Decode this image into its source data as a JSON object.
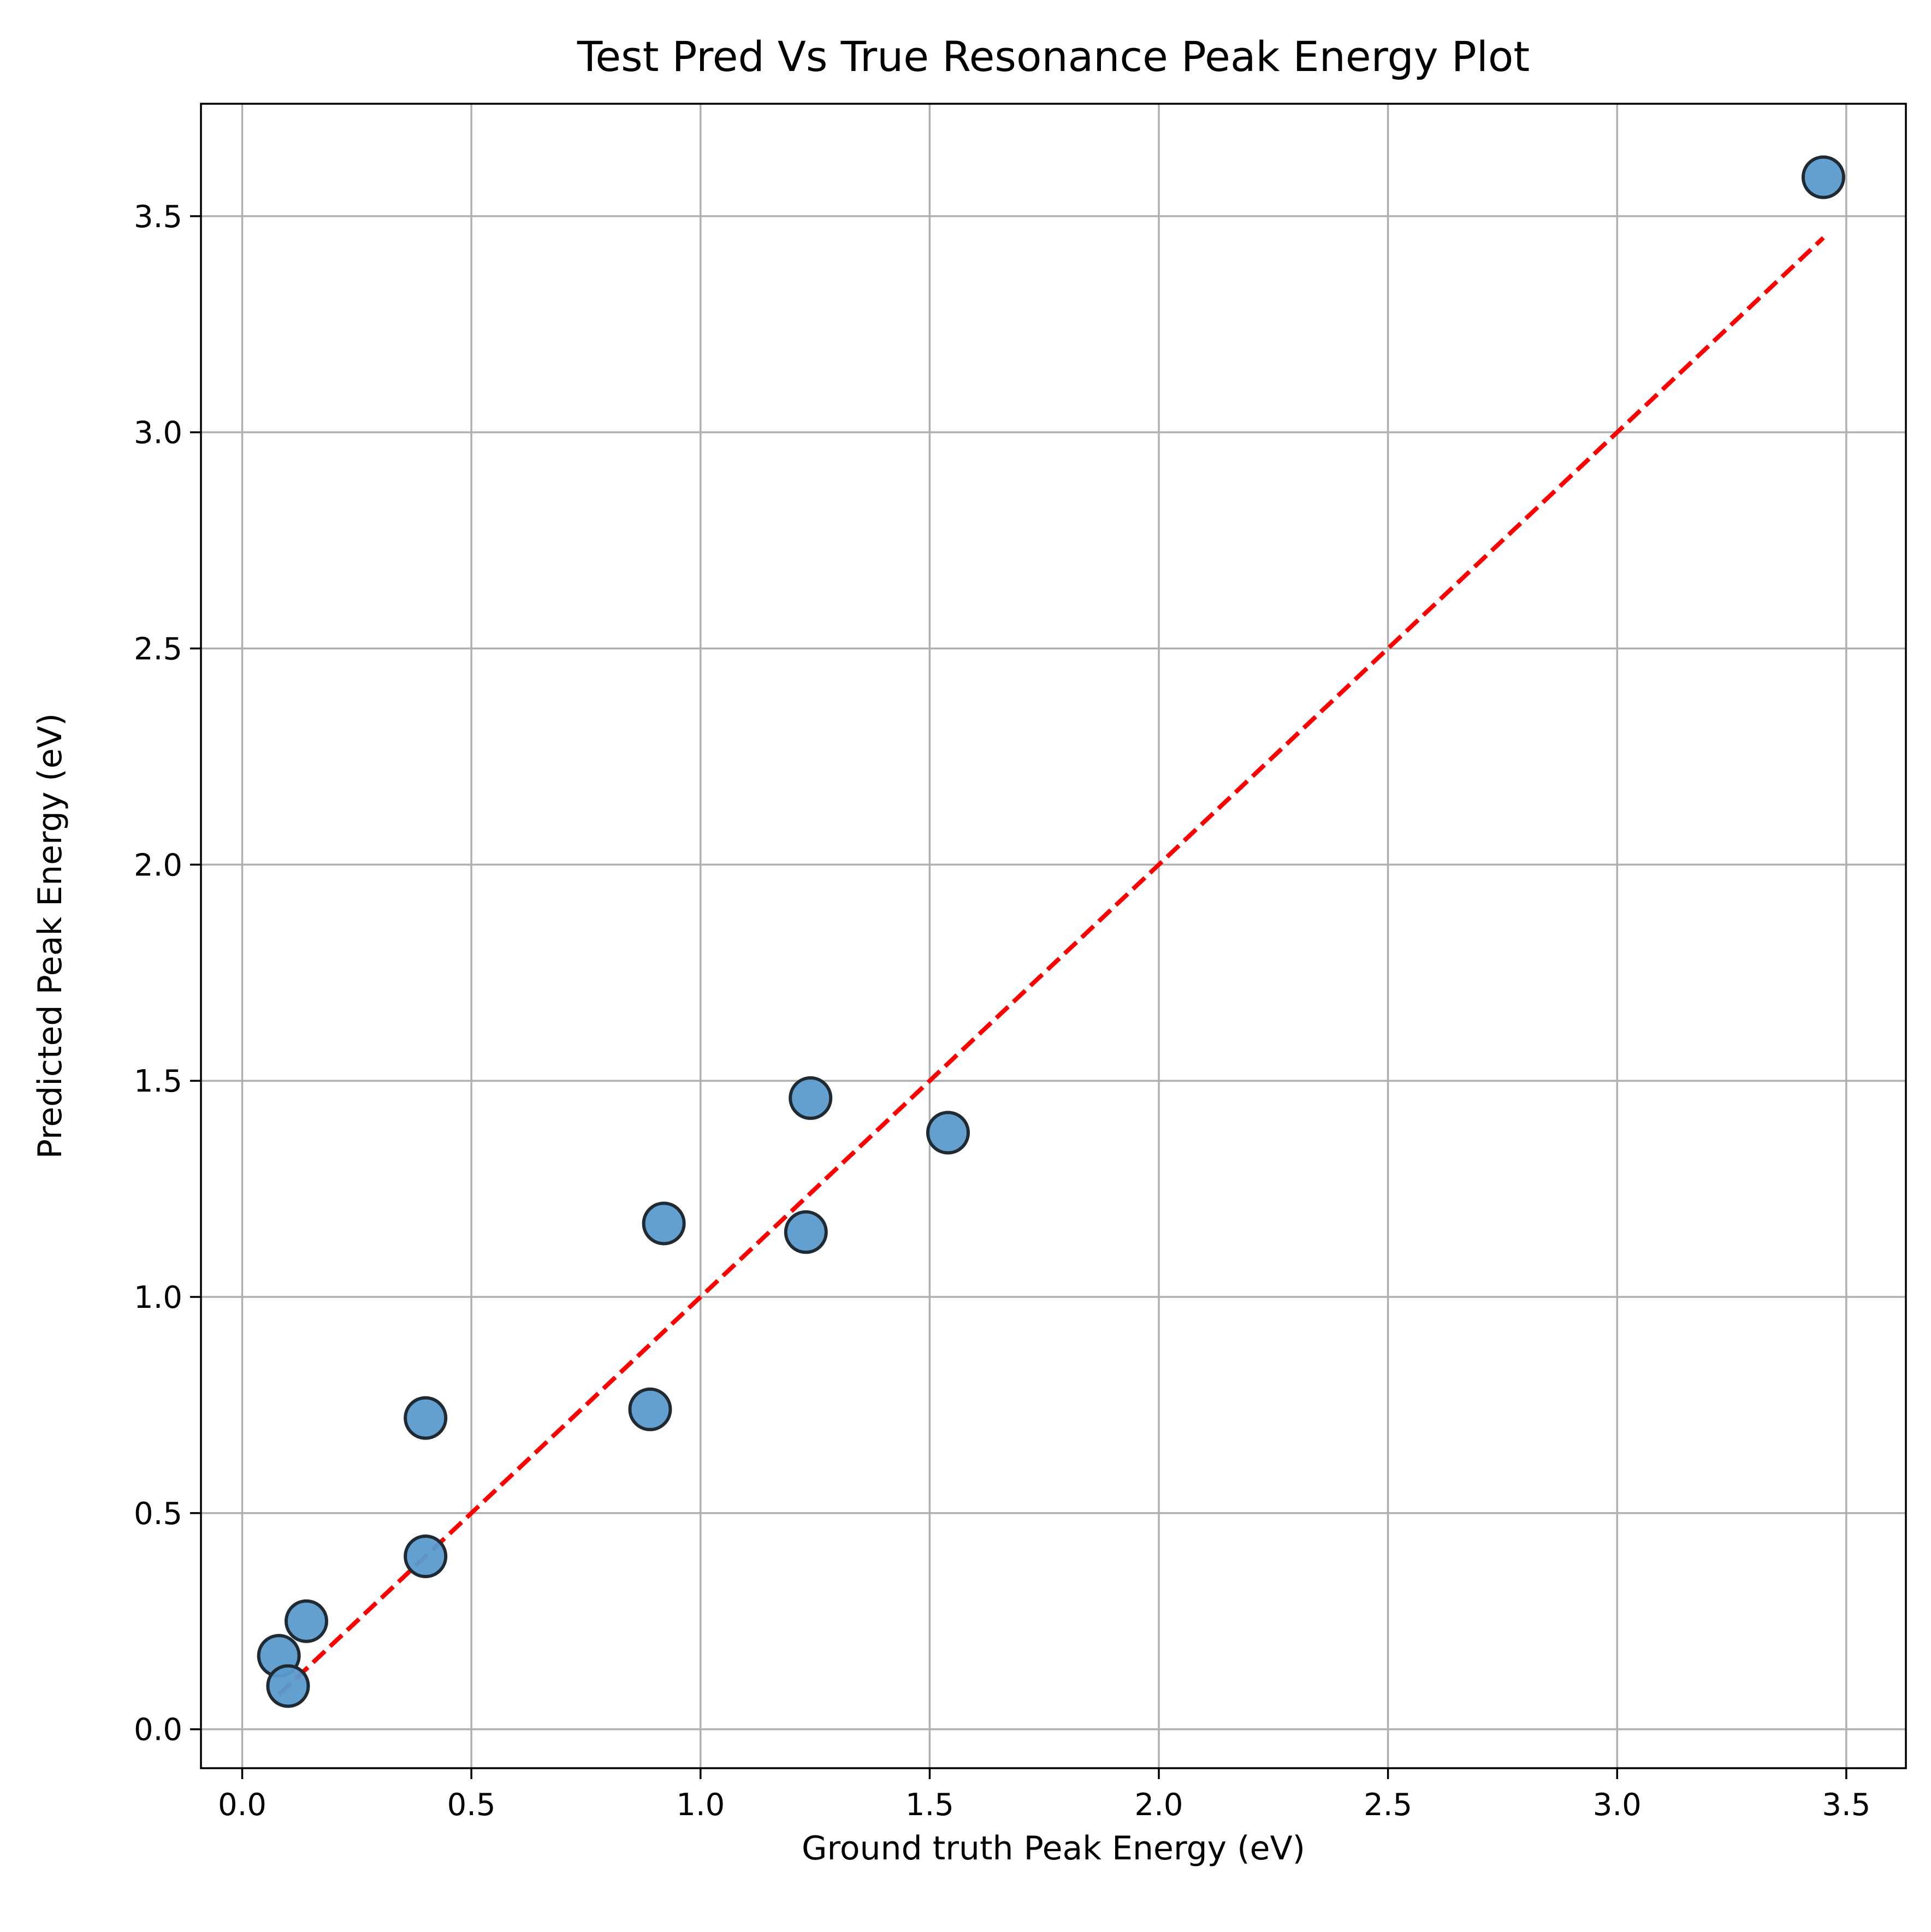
{
  "chart_data": {
    "type": "scatter",
    "title": "Test Pred Vs True Resonance Peak Energy Plot",
    "xlabel": "Ground truth Peak Energy (eV)",
    "ylabel": "Predicted Peak Energy (eV)",
    "xlim": [
      -0.09,
      3.63
    ],
    "ylim": [
      -0.09,
      3.76
    ],
    "xticks": [
      "0.0",
      "0.5",
      "1.0",
      "1.5",
      "2.0",
      "2.5",
      "3.0",
      "3.5"
    ],
    "yticks": [
      "0.0",
      "0.5",
      "1.0",
      "1.5",
      "2.0",
      "2.5",
      "3.0",
      "3.5"
    ],
    "grid": true,
    "points": [
      {
        "x": 0.08,
        "y": 0.17
      },
      {
        "x": 0.1,
        "y": 0.1
      },
      {
        "x": 0.14,
        "y": 0.25
      },
      {
        "x": 0.4,
        "y": 0.72
      },
      {
        "x": 0.4,
        "y": 0.4
      },
      {
        "x": 0.89,
        "y": 0.74
      },
      {
        "x": 0.92,
        "y": 1.17
      },
      {
        "x": 1.23,
        "y": 1.15
      },
      {
        "x": 1.24,
        "y": 1.46
      },
      {
        "x": 1.54,
        "y": 1.38
      },
      {
        "x": 3.45,
        "y": 3.59
      }
    ],
    "reference_line": {
      "x": [
        0.08,
        3.45
      ],
      "y": [
        0.08,
        3.45
      ],
      "style": "dashed"
    },
    "colors": {
      "marker_fill": "#5b9bcc",
      "marker_edge": "#1f2a33",
      "reference_line": "#ff0000",
      "grid": "#b0b0b0",
      "axes": "#000000"
    }
  }
}
